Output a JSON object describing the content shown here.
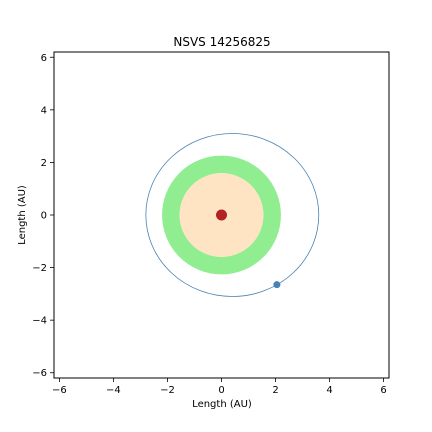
{
  "chart_data": {
    "type": "scatter",
    "title": "NSVS 14256825",
    "xlabel": "Length (AU)",
    "ylabel": "Length (AU)",
    "xlim": [
      -6.2,
      6.2
    ],
    "ylim": [
      -6.2,
      6.2
    ],
    "xticks": [
      -6,
      -4,
      -2,
      0,
      2,
      4,
      6
    ],
    "yticks": [
      -6,
      -4,
      -2,
      0,
      2,
      4,
      6
    ],
    "tick_labels": [
      "−6",
      "−4",
      "−2",
      "0",
      "2",
      "4",
      "6"
    ],
    "grid": false,
    "star": {
      "x": 0,
      "y": 0,
      "color": "#b22222"
    },
    "inner_zone": {
      "radius": 1.55,
      "color": "#ffe4c4"
    },
    "habitable_zone": {
      "inner_radius": 1.55,
      "outer_radius": 2.2,
      "color": "#90ee90"
    },
    "orbit": {
      "center_x": 0.4,
      "center_y": 0,
      "semi_major": 3.2,
      "semi_minor": 3.1,
      "color": "#4682b4"
    },
    "planet": {
      "x": 2.05,
      "y": -2.65,
      "color": "#4682b4"
    }
  }
}
